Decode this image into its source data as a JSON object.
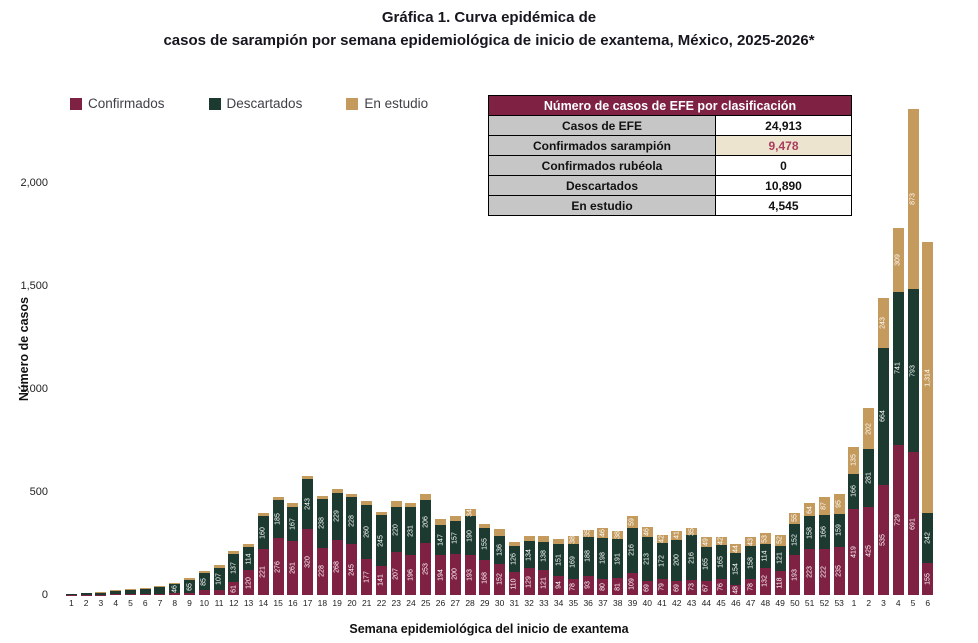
{
  "title": {
    "line1": "Gráfica 1. Curva epidémica de",
    "line2": "casos de sarampión por semana epidemiológica de inicio de exantema, México, 2025-2026*"
  },
  "colors": {
    "confirmados": "#7E2142",
    "descartados": "#1D3A31",
    "en_estudio": "#C49A5D",
    "table_header_bg": "#7E2142",
    "table_label_bg": "#C6C6C6",
    "highlight_bg": "#EDE4CF",
    "highlight_text": "#A83D5E"
  },
  "legend": {
    "items": [
      {
        "label": "Confirmados",
        "color": "#7E2142"
      },
      {
        "label": "Descartados",
        "color": "#1D3A31"
      },
      {
        "label": "En estudio",
        "color": "#C49A5D"
      }
    ]
  },
  "summary_table": {
    "header": "Número de casos de EFE por clasificación",
    "rows": [
      {
        "label": "Casos de EFE",
        "value": "24,913",
        "highlight": false
      },
      {
        "label": "Confirmados sarampión",
        "value": "9,478",
        "highlight": true
      },
      {
        "label": "Confirmados rubéola",
        "value": "0",
        "highlight": false
      },
      {
        "label": "Descartados",
        "value": "10,890",
        "highlight": false
      },
      {
        "label": "En estudio",
        "value": "4,545",
        "highlight": false
      }
    ]
  },
  "chart_data": {
    "type": "bar",
    "stacked": true,
    "title": "Curva epidémica de casos de sarampión",
    "xlabel": "Semana epidemiológica del inicio de exantema",
    "ylabel": "Número de casos",
    "ylim": [
      0,
      2400
    ],
    "yticks": [
      0,
      500,
      1000,
      1500,
      2000
    ],
    "ytick_labels": [
      "0",
      "500",
      "1,000",
      "1,500",
      "2,000"
    ],
    "grid": false,
    "legend_position": "top-left",
    "categories": [
      "1",
      "2",
      "3",
      "4",
      "5",
      "6",
      "7",
      "8",
      "9",
      "10",
      "11",
      "12",
      "13",
      "14",
      "15",
      "16",
      "17",
      "18",
      "19",
      "20",
      "21",
      "22",
      "23",
      "24",
      "25",
      "26",
      "27",
      "28",
      "29",
      "30",
      "31",
      "32",
      "33",
      "34",
      "35",
      "36",
      "37",
      "38",
      "39",
      "40",
      "41",
      "42",
      "43",
      "44",
      "45",
      "46",
      "47",
      "48",
      "49",
      "50",
      "51",
      "52",
      "53",
      "1",
      "2",
      "3",
      "4",
      "5",
      "6"
    ],
    "series": [
      {
        "name": "Confirmados",
        "color": "#7E2142",
        "values": [
          1,
          2,
          2,
          4,
          5,
          4,
          7,
          8,
          8,
          23,
          26,
          61,
          120,
          221,
          276,
          261,
          320,
          228,
          268,
          245,
          177,
          141,
          207,
          196,
          253,
          194,
          200,
          193,
          168,
          152,
          110,
          129,
          121,
          94,
          78,
          93,
          80,
          81,
          109,
          69,
          79,
          69,
          73,
          67,
          76,
          48,
          78,
          132,
          118,
          193,
          223,
          222,
          235,
          419,
          425,
          535,
          729,
          691,
          155
        ]
      },
      {
        "name": "Descartados",
        "color": "#1D3A31",
        "values": [
          4,
          8,
          10,
          18,
          20,
          24,
          30,
          46,
          65,
          85,
          107,
          137,
          114,
          160,
          185,
          167,
          243,
          238,
          229,
          228,
          260,
          245,
          220,
          231,
          206,
          147,
          157,
          190,
          155,
          136,
          126,
          134,
          138,
          151,
          169,
          188,
          198,
          191,
          216,
          213,
          172,
          200,
          216,
          165,
          165,
          154,
          158,
          114,
          121,
          152,
          158,
          166,
          159,
          166,
          281,
          664,
          741,
          793,
          242
        ]
      },
      {
        "name": "En estudio",
        "color": "#C49A5D",
        "values": [
          0,
          0,
          1,
          2,
          3,
          4,
          5,
          5,
          10,
          9,
          12,
          16,
          11,
          18,
          13,
          17,
          14,
          13,
          15,
          17,
          21,
          18,
          28,
          19,
          30,
          27,
          28,
          34,
          19,
          30,
          22,
          21,
          26,
          25,
          38,
          35,
          46,
          38,
          59,
          46,
          42,
          41,
          35,
          49,
          42,
          44,
          43,
          53,
          52,
          55,
          64,
          87,
          95,
          135,
          202,
          243,
          309,
          873,
          1314
        ]
      }
    ]
  }
}
